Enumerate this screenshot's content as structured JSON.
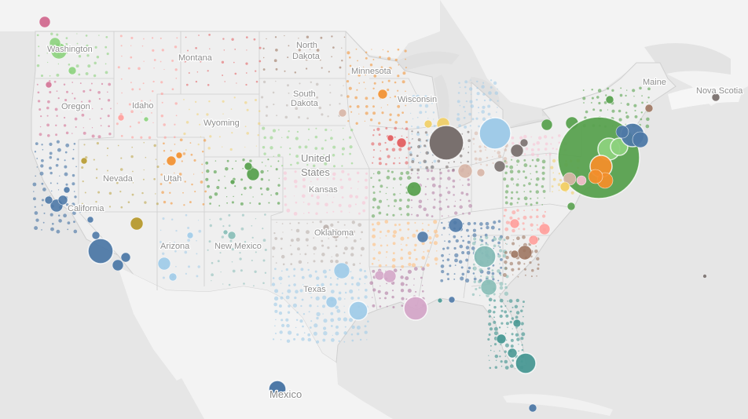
{
  "map": {
    "labels": {
      "washington": "Washington",
      "oregon": "Oregon",
      "idaho": "Idaho",
      "montana": "Montana",
      "wyoming": "Wyoming",
      "nevada": "Nevada",
      "utah": "Utah",
      "california": "California",
      "arizona": "Arizona",
      "new_mexico": "New Mexico",
      "north_dakota_1": "North",
      "north_dakota_2": "Dakota",
      "south_dakota_1": "South",
      "south_dakota_2": "Dakota",
      "minnesota": "Minnesota",
      "wisconsin": "Wisconsin",
      "kansas": "Kansas",
      "oklahoma": "Oklahoma",
      "texas": "Texas",
      "us_1": "United",
      "us_2": "States",
      "maine": "Maine",
      "nova_scotia": "Nova Scotia",
      "mexico": "Mexico"
    },
    "colors": {
      "land": "#f1f1f1",
      "land_outside": "#f4f4f4",
      "water": "#e4e4e4",
      "border": "#c9c9c9",
      "blue": "#4e79a7",
      "light_blue": "#a0cbe8",
      "orange": "#f28e2b",
      "light_orange": "#ffbe7d",
      "green": "#59a14f",
      "light_green": "#8cd17d",
      "olive": "#b6992d",
      "yellow": "#f1ce63",
      "teal": "#499894",
      "light_teal": "#86bcb6",
      "red": "#e15759",
      "pink_light": "#ff9d9a",
      "gray": "#79706e",
      "light_gray": "#bab0ac",
      "magenta": "#d37295",
      "light_magenta": "#fabfd2",
      "purple": "#b07aa1",
      "light_purple": "#d4a6c8",
      "brown": "#9d7660",
      "light_brown": "#d7b5a6"
    }
  }
}
